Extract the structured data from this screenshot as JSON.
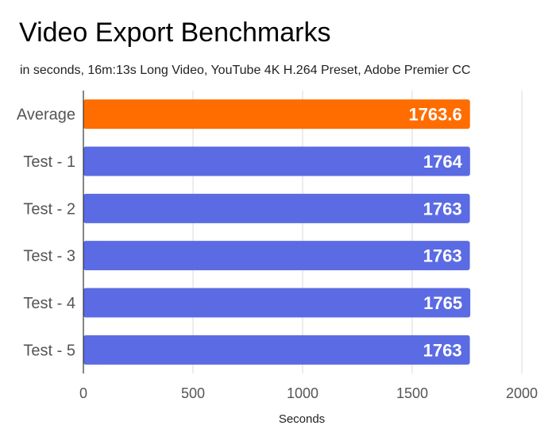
{
  "chart_data": {
    "type": "bar",
    "orientation": "horizontal",
    "title": "Video Export Benchmarks",
    "subtitle": "in seconds, 16m:13s Long Video, YouTube 4K H.264 Preset, Adobe Premier CC",
    "categories": [
      "Average",
      "Test - 1",
      "Test - 2",
      "Test - 3",
      "Test - 4",
      "Test - 5"
    ],
    "values": [
      1763.6,
      1764,
      1763,
      1763,
      1765,
      1763
    ],
    "value_labels": [
      "1763.6",
      "1764",
      "1763",
      "1763",
      "1765",
      "1763"
    ],
    "bar_colors": [
      "#ff6d01",
      "#5b6be3",
      "#5b6be3",
      "#5b6be3",
      "#5b6be3",
      "#5b6be3"
    ],
    "xlabel": "Seconds",
    "ylabel": "",
    "xlim": [
      0,
      2000
    ],
    "x_ticks": [
      0,
      500,
      1000,
      1500,
      2000
    ],
    "x_tick_labels": [
      "0",
      "500",
      "1000",
      "1500",
      "2000"
    ],
    "grid": true,
    "legend": false
  },
  "colors": {
    "highlight": "#ff6d01",
    "bar": "#5b6be3",
    "grid": "#d9d9d9",
    "axis": "#333333"
  }
}
